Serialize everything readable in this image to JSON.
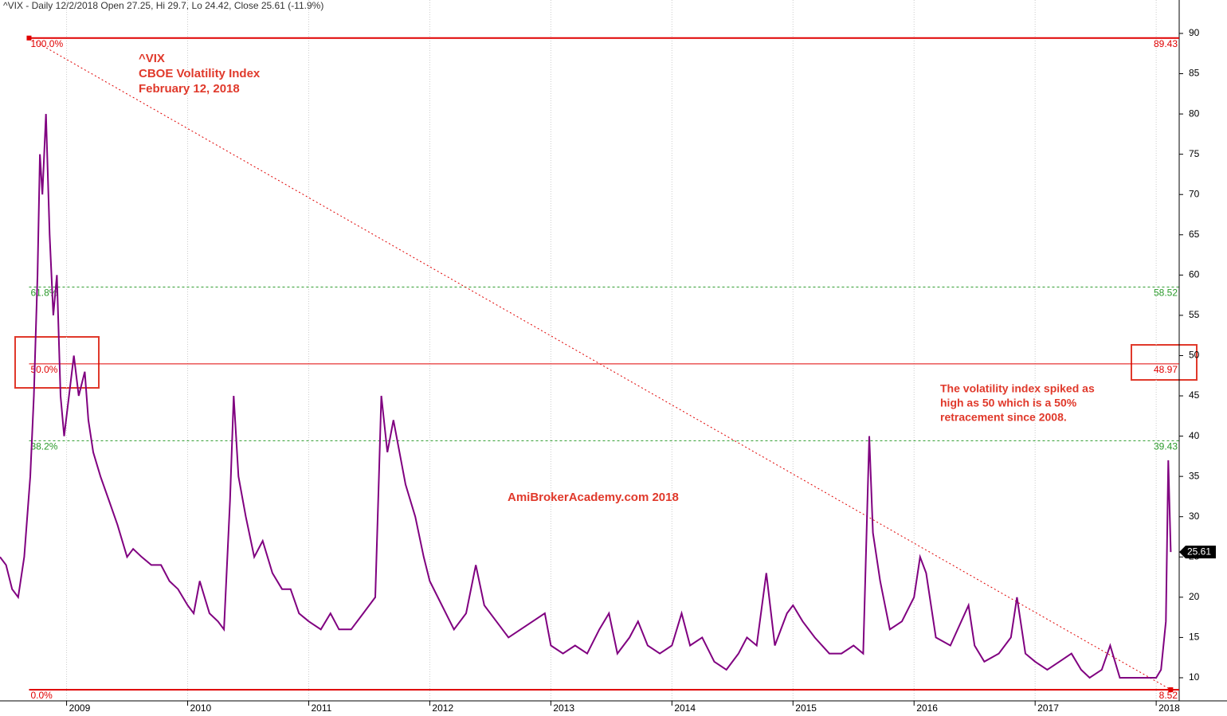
{
  "chart_data": {
    "type": "line",
    "header": "^VIX - Daily 12/2/2018 Open 27.25, Hi 29.7, Lo 24.42, Close 25.61 (-11.9%)",
    "title_lines": [
      "^VIX",
      "CBOE Volatility Index",
      "February 12, 2018"
    ],
    "note_lines": [
      "The volatility index spiked as",
      "high as 50 which is a 50%",
      "retracement since 2008."
    ],
    "watermark": "AmiBrokerAcademy.com  2018",
    "color": "#800080",
    "grid": true,
    "xlim": [
      2008.45,
      2018.19
    ],
    "ylim": [
      7.13,
      94.15
    ],
    "xticks": [
      2009,
      2010,
      2011,
      2012,
      2013,
      2014,
      2015,
      2016,
      2017,
      2018
    ],
    "yticks": [
      10,
      15,
      20,
      25,
      30,
      35,
      40,
      45,
      50,
      55,
      60,
      65,
      70,
      75,
      80,
      85,
      90
    ],
    "last_price": 25.61,
    "fib_start": 2008.69,
    "fib_end": 2018.12,
    "levels": [
      {
        "label": "100.0%",
        "value": 89.43,
        "color": "#e00000",
        "dashed": false
      },
      {
        "label": "61.8%",
        "value": 58.52,
        "color": "#2a9a2a",
        "dashed": true
      },
      {
        "label": "50.0%",
        "value": 48.97,
        "color": "#e00000",
        "dashed": false
      },
      {
        "label": "38.2%",
        "value": 39.43,
        "color": "#2a9a2a",
        "dashed": true
      },
      {
        "label": "0.0%",
        "value": 8.52,
        "color": "#e00000",
        "dashed": false
      }
    ],
    "x": [
      2008.45,
      2008.5,
      2008.55,
      2008.6,
      2008.65,
      2008.7,
      2008.73,
      2008.76,
      2008.78,
      2008.8,
      2008.83,
      2008.86,
      2008.89,
      2008.92,
      2008.95,
      2008.98,
      2009.02,
      2009.06,
      2009.1,
      2009.15,
      2009.18,
      2009.22,
      2009.28,
      2009.35,
      2009.42,
      2009.5,
      2009.55,
      2009.62,
      2009.7,
      2009.78,
      2009.85,
      2009.92,
      2010.0,
      2010.05,
      2010.1,
      2010.18,
      2010.25,
      2010.3,
      2010.35,
      2010.38,
      2010.42,
      2010.48,
      2010.55,
      2010.62,
      2010.7,
      2010.78,
      2010.85,
      2010.92,
      2011.0,
      2011.1,
      2011.18,
      2011.25,
      2011.35,
      2011.45,
      2011.55,
      2011.58,
      2011.6,
      2011.65,
      2011.7,
      2011.75,
      2011.8,
      2011.88,
      2011.95,
      2012.0,
      2012.1,
      2012.2,
      2012.3,
      2012.38,
      2012.45,
      2012.55,
      2012.65,
      2012.75,
      2012.85,
      2012.95,
      2013.0,
      2013.1,
      2013.2,
      2013.3,
      2013.4,
      2013.48,
      2013.55,
      2013.65,
      2013.72,
      2013.8,
      2013.9,
      2014.0,
      2014.08,
      2014.15,
      2014.25,
      2014.35,
      2014.45,
      2014.55,
      2014.62,
      2014.7,
      2014.78,
      2014.85,
      2014.95,
      2015.0,
      2015.08,
      2015.18,
      2015.3,
      2015.4,
      2015.5,
      2015.58,
      2015.63,
      2015.66,
      2015.72,
      2015.8,
      2015.9,
      2016.0,
      2016.05,
      2016.1,
      2016.18,
      2016.3,
      2016.45,
      2016.5,
      2016.58,
      2016.7,
      2016.8,
      2016.85,
      2016.92,
      2017.0,
      2017.1,
      2017.2,
      2017.3,
      2017.38,
      2017.45,
      2017.55,
      2017.62,
      2017.7,
      2017.78,
      2017.85,
      2017.95,
      2018.0,
      2018.04,
      2018.08,
      2018.1,
      2018.12
    ],
    "values": [
      25,
      24,
      21,
      20,
      25,
      35,
      45,
      60,
      75,
      70,
      80,
      65,
      55,
      60,
      45,
      40,
      45,
      50,
      45,
      48,
      42,
      38,
      35,
      32,
      29,
      25,
      26,
      25,
      24,
      24,
      22,
      21,
      19,
      18,
      22,
      18,
      17,
      16,
      32,
      45,
      35,
      30,
      25,
      27,
      23,
      21,
      21,
      18,
      17,
      16,
      18,
      16,
      16,
      18,
      20,
      35,
      45,
      38,
      42,
      38,
      34,
      30,
      25,
      22,
      19,
      16,
      18,
      24,
      19,
      17,
      15,
      16,
      17,
      18,
      14,
      13,
      14,
      13,
      16,
      18,
      13,
      15,
      17,
      14,
      13,
      14,
      18,
      14,
      15,
      12,
      11,
      13,
      15,
      14,
      23,
      14,
      18,
      19,
      17,
      15,
      13,
      13,
      14,
      13,
      40,
      28,
      22,
      16,
      17,
      20,
      25,
      23,
      15,
      14,
      19,
      14,
      12,
      13,
      15,
      20,
      13,
      12,
      11,
      12,
      13,
      11,
      10,
      11,
      14,
      10,
      10,
      10,
      10,
      10,
      11,
      17,
      37,
      25.61
    ]
  }
}
